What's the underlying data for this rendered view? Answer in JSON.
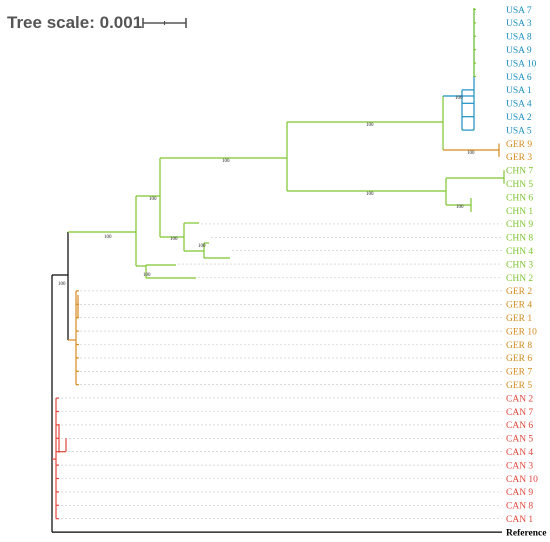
{
  "scale": {
    "label": "Tree scale: 0.001"
  },
  "colors": {
    "usa": "#1a8fc2",
    "ger": "#d48a1e",
    "chn": "#7dc52e",
    "can": "#e0453a",
    "ref": "#000000",
    "guide": "#c8c8c8"
  },
  "support_values": [
    "100",
    "100",
    "100",
    "100",
    "100",
    "100",
    "100",
    "100",
    "100",
    "100",
    "100",
    "100"
  ],
  "leaves": [
    {
      "label": "USA 7",
      "group": "usa"
    },
    {
      "label": "USA 3",
      "group": "usa"
    },
    {
      "label": "USA 8",
      "group": "usa"
    },
    {
      "label": "USA 9",
      "group": "usa"
    },
    {
      "label": "USA 10",
      "group": "usa"
    },
    {
      "label": "USA 6",
      "group": "usa"
    },
    {
      "label": "USA 1",
      "group": "usa"
    },
    {
      "label": "USA 4",
      "group": "usa"
    },
    {
      "label": "USA 2",
      "group": "usa"
    },
    {
      "label": "USA 5",
      "group": "usa"
    },
    {
      "label": "GER 9",
      "group": "ger"
    },
    {
      "label": "GER 3",
      "group": "ger"
    },
    {
      "label": "CHN 7",
      "group": "chn"
    },
    {
      "label": "CHN 5",
      "group": "chn"
    },
    {
      "label": "CHN 6",
      "group": "chn"
    },
    {
      "label": "CHN 1",
      "group": "chn"
    },
    {
      "label": "CHN 9",
      "group": "chn"
    },
    {
      "label": "CHN 8",
      "group": "chn"
    },
    {
      "label": "CHN 4",
      "group": "chn"
    },
    {
      "label": "CHN 3",
      "group": "chn"
    },
    {
      "label": "CHN 2",
      "group": "chn"
    },
    {
      "label": "GER 2",
      "group": "ger"
    },
    {
      "label": "GER 4",
      "group": "ger"
    },
    {
      "label": "GER 1",
      "group": "ger"
    },
    {
      "label": "GER 10",
      "group": "ger"
    },
    {
      "label": "GER 8",
      "group": "ger"
    },
    {
      "label": "GER 6",
      "group": "ger"
    },
    {
      "label": "GER 7",
      "group": "ger"
    },
    {
      "label": "GER 5",
      "group": "ger"
    },
    {
      "label": "CAN 2",
      "group": "can"
    },
    {
      "label": "CAN 7",
      "group": "can"
    },
    {
      "label": "CAN 6",
      "group": "can"
    },
    {
      "label": "CAN 5",
      "group": "can"
    },
    {
      "label": "CAN 4",
      "group": "can"
    },
    {
      "label": "CAN 3",
      "group": "can"
    },
    {
      "label": "CAN 10",
      "group": "can"
    },
    {
      "label": "CAN 9",
      "group": "can"
    },
    {
      "label": "CAN 8",
      "group": "can"
    },
    {
      "label": "CAN 1",
      "group": "can"
    },
    {
      "label": "Reference",
      "group": "ref"
    }
  ]
}
